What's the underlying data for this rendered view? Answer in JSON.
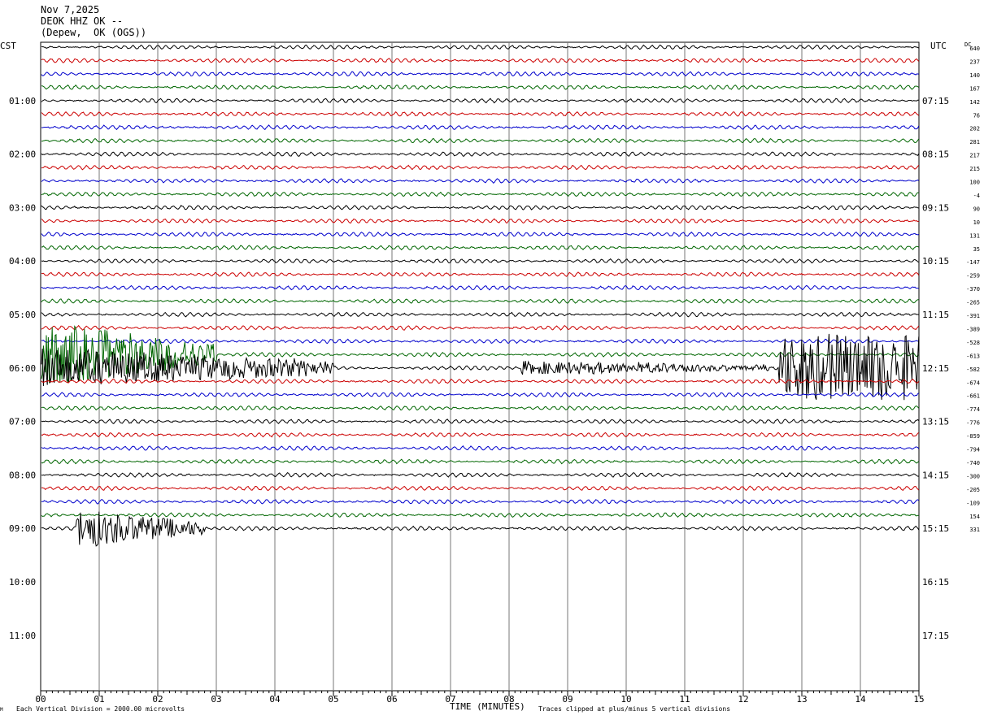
{
  "header": {
    "date": "Nov 7,2025",
    "station": "DEOK HHZ OK --",
    "location": "(Depew,  OK (OGS))"
  },
  "axes": {
    "left_label": "CST",
    "right_label": "UTC",
    "dc_label": "DC",
    "xlabel": "TIME (MINUTES)",
    "x_ticks": [
      "00",
      "01",
      "02",
      "03",
      "04",
      "05",
      "06",
      "07",
      "08",
      "09",
      "10",
      "11",
      "12",
      "13",
      "14",
      "15"
    ],
    "left_ticks": [
      "01:00",
      "02:00",
      "03:00",
      "04:00",
      "05:00",
      "06:00",
      "07:00",
      "08:00",
      "09:00",
      "10:00",
      "11:00"
    ],
    "right_ticks": [
      "07:15",
      "08:15",
      "09:15",
      "10:15",
      "11:15",
      "12:15",
      "13:15",
      "14:15",
      "15:15",
      "16:15",
      "17:15"
    ]
  },
  "footer": {
    "scale_note": "Each Vertical Division = 2000.00 microvolts",
    "clip_note": "Traces clipped at plus/minus 5 vertical divisions",
    "corner_mark": "M"
  },
  "chart_data": {
    "type": "line",
    "title": "",
    "xlim": [
      0,
      15
    ],
    "x_minutes_per_line": 15,
    "trace_colors": [
      "#000000",
      "#cc0000",
      "#0000cc",
      "#006600"
    ],
    "dc_offsets": [
      640,
      237,
      140,
      167,
      142,
      76,
      202,
      281,
      217,
      215,
      100,
      -4,
      90,
      10,
      131,
      35,
      -147,
      -259,
      -370,
      -265,
      -391,
      -389,
      -528,
      -613,
      -582,
      -674,
      -661,
      -774,
      -776,
      -859,
      -794,
      -740,
      -300,
      -205,
      -109,
      154,
      331
    ],
    "events": [
      {
        "trace": 23,
        "x_start": 0.0,
        "x_end": 3.0,
        "amplitude_divisions": 5
      },
      {
        "trace": 24,
        "x_start": 0.0,
        "x_end": 5.0,
        "amplitude_divisions": 3
      },
      {
        "trace": 24,
        "x_start": 8.2,
        "x_end": 12.5,
        "amplitude_divisions": 1
      },
      {
        "trace": 24,
        "x_start": 12.6,
        "x_end": 15.0,
        "amplitude_divisions": 5
      },
      {
        "trace": 36,
        "x_start": 0.6,
        "x_end": 2.8,
        "amplitude_divisions": 3
      }
    ]
  }
}
